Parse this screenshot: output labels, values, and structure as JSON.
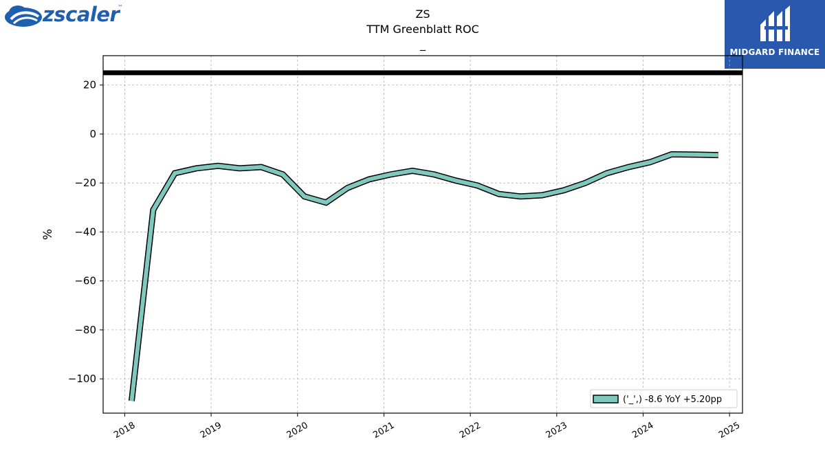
{
  "logos": {
    "left": {
      "text": "zscaler",
      "tm": "™",
      "icon": "zscaler-cloud-icon",
      "color": "#1e5fb0"
    },
    "right": {
      "text": "MIDGARD FINANCE",
      "icon": "midgard-emblem-icon",
      "bg": "#2a58ad"
    }
  },
  "chart_data": {
    "type": "line",
    "title": "ZS",
    "subtitle": "TTM Greenblatt ROC",
    "subtitle2": "_",
    "xlabel": "",
    "ylabel": "%",
    "xlim": [
      2017.75,
      2025.15
    ],
    "ylim": [
      -114,
      32
    ],
    "x_ticks": [
      "2018",
      "2019",
      "2020",
      "2021",
      "2022",
      "2023",
      "2024",
      "2025"
    ],
    "y_ticks": [
      20,
      0,
      -20,
      -40,
      -60,
      -80,
      -100
    ],
    "grid": true,
    "legend_position": "lower-right",
    "reference_line": {
      "y": 25,
      "color": "#000000"
    },
    "series": [
      {
        "name": "('_',) -8.6 YoY +5.20pp",
        "color": "#7ec8be",
        "x": [
          2018.08,
          2018.33,
          2018.58,
          2018.83,
          2019.08,
          2019.33,
          2019.58,
          2019.83,
          2020.08,
          2020.33,
          2020.58,
          2020.83,
          2021.08,
          2021.33,
          2021.58,
          2021.83,
          2022.08,
          2022.33,
          2022.58,
          2022.83,
          2023.08,
          2023.33,
          2023.58,
          2023.83,
          2024.08,
          2024.33,
          2024.58,
          2024.87
        ],
        "y": [
          -109,
          -31,
          -16,
          -14,
          -13,
          -14,
          -13.5,
          -16.5,
          -25.5,
          -28,
          -22,
          -18.5,
          -16.5,
          -15,
          -16.5,
          -19,
          -21,
          -24.5,
          -25.5,
          -25,
          -23,
          -20,
          -16,
          -13.5,
          -11.5,
          -8.3,
          -8.4,
          -8.6
        ]
      }
    ]
  }
}
